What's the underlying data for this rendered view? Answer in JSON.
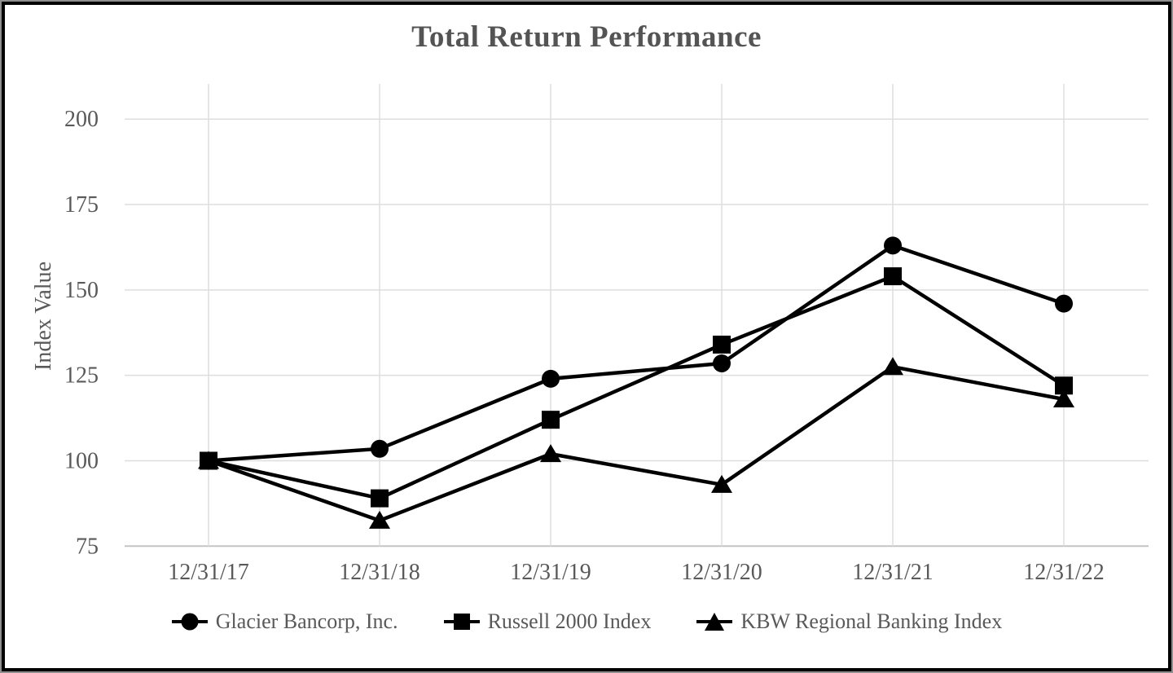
{
  "chart_data": {
    "type": "line",
    "title": "Total Return Performance",
    "ylabel": "Index Value",
    "xlabel": "",
    "categories": [
      "12/31/17",
      "12/31/18",
      "12/31/19",
      "12/31/20",
      "12/31/21",
      "12/31/22"
    ],
    "series": [
      {
        "name": "Glacier Bancorp, Inc.",
        "marker": "circle",
        "values": [
          100,
          103.5,
          124,
          128.5,
          163,
          146
        ]
      },
      {
        "name": "Russell 2000 Index",
        "marker": "square",
        "values": [
          100,
          89,
          112,
          134,
          154,
          122
        ]
      },
      {
        "name": "KBW Regional Banking Index",
        "marker": "triangle",
        "values": [
          100,
          82.5,
          102,
          93,
          127.5,
          118
        ]
      }
    ],
    "yticks": [
      75,
      100,
      125,
      150,
      175,
      200
    ],
    "ylim": [
      75,
      210
    ],
    "grid": true,
    "legend_position": "bottom",
    "colors": {
      "series": "#000000",
      "grid": "#dedede",
      "axis": "#c4c4c4",
      "text": "#595959",
      "title": "#545454",
      "frame_outer": "#8f8f8f",
      "frame_inner": "#000000"
    }
  }
}
